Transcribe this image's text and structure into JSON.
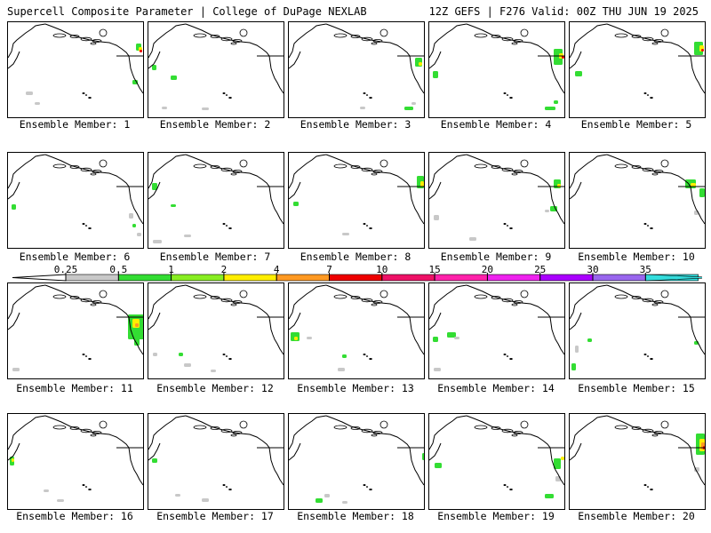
{
  "header": {
    "left": "Supercell Composite Parameter | College of DuPage NEXLAB",
    "right": "12Z GEFS | F276 Valid: 00Z THU JUN 19 2025"
  },
  "panel_label_prefix": "Ensemble Member: ",
  "members": [
    {
      "label": "Ensemble Member: 1"
    },
    {
      "label": "Ensemble Member: 2"
    },
    {
      "label": "Ensemble Member: 3"
    },
    {
      "label": "Ensemble Member: 4"
    },
    {
      "label": "Ensemble Member: 5"
    },
    {
      "label": "Ensemble Member: 6"
    },
    {
      "label": "Ensemble Member: 7"
    },
    {
      "label": "Ensemble Member: 8"
    },
    {
      "label": "Ensemble Member: 9"
    },
    {
      "label": "Ensemble Member: 10"
    },
    {
      "label": "Ensemble Member: 11"
    },
    {
      "label": "Ensemble Member: 12"
    },
    {
      "label": "Ensemble Member: 13"
    },
    {
      "label": "Ensemble Member: 14"
    },
    {
      "label": "Ensemble Member: 15"
    },
    {
      "label": "Ensemble Member: 16"
    },
    {
      "label": "Ensemble Member: 17"
    },
    {
      "label": "Ensemble Member: 18"
    },
    {
      "label": "Ensemble Member: 19"
    },
    {
      "label": "Ensemble Member: 20"
    }
  ],
  "legend": {
    "ticks": [
      "0.25",
      "0.5",
      "1",
      "2",
      "4",
      "7",
      "10",
      "15",
      "20",
      "25",
      "30",
      "35"
    ],
    "colors": [
      "#c8c8c8",
      "#33dd33",
      "#88ee22",
      "#ffee00",
      "#ff9922",
      "#ee0000",
      "#ee1166",
      "#ff22aa",
      "#ee22ee",
      "#aa00ff",
      "#9966ee",
      "#33dddd"
    ]
  }
}
